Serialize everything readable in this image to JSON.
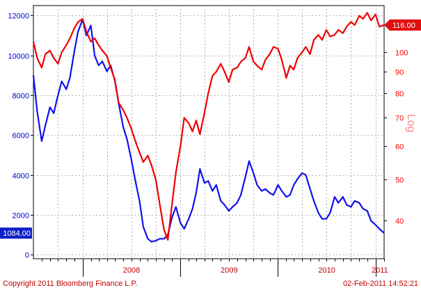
{
  "chart_data": {
    "type": "line",
    "x_tick_labels": [
      "2008",
      "2009",
      "2010",
      "2011"
    ],
    "x_range": [
      "2007-07-01",
      "2011-02-02"
    ],
    "left_axis": {
      "ticks": [
        0,
        2000,
        4000,
        6000,
        8000,
        10000,
        12000
      ],
      "range": [
        -200,
        12500
      ],
      "color": "#0000cc"
    },
    "right_axis": {
      "label": "Log",
      "scale": "log",
      "ticks": [
        40,
        50,
        60,
        70,
        80,
        90,
        100
      ],
      "range": [
        32.5,
        129
      ],
      "color": "#ff0000"
    },
    "grid": true,
    "series": [
      {
        "color": "#1010ee",
        "axis": "left",
        "last_value_label": "1084.00",
        "points": [
          [
            "2007-07-01",
            9000
          ],
          [
            "2007-07-15",
            7200
          ],
          [
            "2007-08-01",
            5700
          ],
          [
            "2007-08-15",
            6500
          ],
          [
            "2007-09-01",
            7400
          ],
          [
            "2007-09-15",
            7100
          ],
          [
            "2007-10-01",
            8000
          ],
          [
            "2007-10-15",
            8700
          ],
          [
            "2007-11-01",
            8300
          ],
          [
            "2007-11-15",
            8900
          ],
          [
            "2007-12-01",
            10200
          ],
          [
            "2007-12-15",
            11200
          ],
          [
            "2008-01-01",
            11800
          ],
          [
            "2008-01-15",
            11000
          ],
          [
            "2008-02-01",
            11500
          ],
          [
            "2008-02-15",
            10000
          ],
          [
            "2008-03-01",
            9500
          ],
          [
            "2008-03-15",
            9700
          ],
          [
            "2008-04-01",
            9200
          ],
          [
            "2008-04-15",
            9500
          ],
          [
            "2008-05-01",
            8700
          ],
          [
            "2008-05-15",
            7600
          ],
          [
            "2008-06-01",
            6400
          ],
          [
            "2008-06-15",
            5800
          ],
          [
            "2008-07-01",
            4800
          ],
          [
            "2008-07-15",
            3800
          ],
          [
            "2008-08-01",
            2700
          ],
          [
            "2008-08-15",
            1400
          ],
          [
            "2008-09-01",
            800
          ],
          [
            "2008-09-15",
            650
          ],
          [
            "2008-10-01",
            700
          ],
          [
            "2008-10-15",
            800
          ],
          [
            "2008-11-01",
            800
          ],
          [
            "2008-11-15",
            1000
          ],
          [
            "2008-12-01",
            1900
          ],
          [
            "2008-12-15",
            2400
          ],
          [
            "2009-01-01",
            1600
          ],
          [
            "2009-01-15",
            1300
          ],
          [
            "2009-02-01",
            1800
          ],
          [
            "2009-02-15",
            2300
          ],
          [
            "2009-03-01",
            3100
          ],
          [
            "2009-03-15",
            4300
          ],
          [
            "2009-04-01",
            3600
          ],
          [
            "2009-04-15",
            3700
          ],
          [
            "2009-05-01",
            3200
          ],
          [
            "2009-05-15",
            3500
          ],
          [
            "2009-06-01",
            2700
          ],
          [
            "2009-06-15",
            2500
          ],
          [
            "2009-07-01",
            2200
          ],
          [
            "2009-07-15",
            2400
          ],
          [
            "2009-08-01",
            2600
          ],
          [
            "2009-08-15",
            3000
          ],
          [
            "2009-09-01",
            3900
          ],
          [
            "2009-09-15",
            4700
          ],
          [
            "2009-10-01",
            4100
          ],
          [
            "2009-10-15",
            3500
          ],
          [
            "2009-11-01",
            3200
          ],
          [
            "2009-11-15",
            3300
          ],
          [
            "2009-12-01",
            3100
          ],
          [
            "2009-12-15",
            3000
          ],
          [
            "2010-01-01",
            3500
          ],
          [
            "2010-01-15",
            3200
          ],
          [
            "2010-02-01",
            2900
          ],
          [
            "2010-02-15",
            3000
          ],
          [
            "2010-03-01",
            3500
          ],
          [
            "2010-03-15",
            3800
          ],
          [
            "2010-04-01",
            4100
          ],
          [
            "2010-04-15",
            4000
          ],
          [
            "2010-05-01",
            3300
          ],
          [
            "2010-05-15",
            2700
          ],
          [
            "2010-06-01",
            2100
          ],
          [
            "2010-06-15",
            1800
          ],
          [
            "2010-07-01",
            1800
          ],
          [
            "2010-07-15",
            2100
          ],
          [
            "2010-08-01",
            2900
          ],
          [
            "2010-08-15",
            2600
          ],
          [
            "2010-09-01",
            2900
          ],
          [
            "2010-09-15",
            2500
          ],
          [
            "2010-10-01",
            2400
          ],
          [
            "2010-10-15",
            2700
          ],
          [
            "2010-11-01",
            2600
          ],
          [
            "2010-11-15",
            2300
          ],
          [
            "2010-12-01",
            2200
          ],
          [
            "2010-12-15",
            1700
          ],
          [
            "2011-01-01",
            1500
          ],
          [
            "2011-01-15",
            1300
          ],
          [
            "2011-02-02",
            1084
          ]
        ]
      },
      {
        "color": "#ee0000",
        "axis": "right",
        "last_value_label": "116.00",
        "points": [
          [
            "2007-07-01",
            106
          ],
          [
            "2007-07-15",
            97
          ],
          [
            "2007-08-01",
            92
          ],
          [
            "2007-08-15",
            99
          ],
          [
            "2007-09-01",
            101
          ],
          [
            "2007-09-15",
            97
          ],
          [
            "2007-10-01",
            94
          ],
          [
            "2007-10-15",
            100
          ],
          [
            "2007-11-01",
            104
          ],
          [
            "2007-11-15",
            108
          ],
          [
            "2007-12-01",
            114
          ],
          [
            "2007-12-15",
            118
          ],
          [
            "2008-01-01",
            120
          ],
          [
            "2008-01-15",
            112
          ],
          [
            "2008-02-01",
            106
          ],
          [
            "2008-02-15",
            108
          ],
          [
            "2008-03-01",
            104
          ],
          [
            "2008-03-15",
            101
          ],
          [
            "2008-04-01",
            98
          ],
          [
            "2008-04-15",
            92
          ],
          [
            "2008-05-01",
            86
          ],
          [
            "2008-05-15",
            76
          ],
          [
            "2008-06-01",
            73
          ],
          [
            "2008-06-15",
            70
          ],
          [
            "2008-07-01",
            66
          ],
          [
            "2008-07-15",
            62
          ],
          [
            "2008-08-01",
            58
          ],
          [
            "2008-08-15",
            55
          ],
          [
            "2008-09-01",
            57
          ],
          [
            "2008-09-15",
            54
          ],
          [
            "2008-10-01",
            50
          ],
          [
            "2008-10-15",
            44
          ],
          [
            "2008-11-01",
            38
          ],
          [
            "2008-11-15",
            36
          ],
          [
            "2008-12-01",
            44
          ],
          [
            "2008-12-15",
            52
          ],
          [
            "2009-01-01",
            60
          ],
          [
            "2009-01-15",
            70
          ],
          [
            "2009-02-01",
            68
          ],
          [
            "2009-02-15",
            65
          ],
          [
            "2009-03-01",
            69
          ],
          [
            "2009-03-15",
            64
          ],
          [
            "2009-04-01",
            72
          ],
          [
            "2009-04-15",
            80
          ],
          [
            "2009-05-01",
            88
          ],
          [
            "2009-05-15",
            90
          ],
          [
            "2009-06-01",
            94
          ],
          [
            "2009-06-15",
            90
          ],
          [
            "2009-07-01",
            85
          ],
          [
            "2009-07-15",
            91
          ],
          [
            "2009-08-01",
            92
          ],
          [
            "2009-08-15",
            95
          ],
          [
            "2009-09-01",
            97
          ],
          [
            "2009-09-15",
            103
          ],
          [
            "2009-10-01",
            95
          ],
          [
            "2009-10-15",
            93
          ],
          [
            "2009-11-01",
            91
          ],
          [
            "2009-11-15",
            96
          ],
          [
            "2009-12-01",
            99
          ],
          [
            "2009-12-15",
            103
          ],
          [
            "2010-01-01",
            102
          ],
          [
            "2010-01-15",
            96
          ],
          [
            "2010-02-01",
            87
          ],
          [
            "2010-02-15",
            93
          ],
          [
            "2010-03-01",
            91
          ],
          [
            "2010-03-15",
            97
          ],
          [
            "2010-04-01",
            100
          ],
          [
            "2010-04-15",
            103
          ],
          [
            "2010-05-01",
            99
          ],
          [
            "2010-05-15",
            107
          ],
          [
            "2010-06-01",
            110
          ],
          [
            "2010-06-15",
            107
          ],
          [
            "2010-07-01",
            113
          ],
          [
            "2010-07-15",
            109
          ],
          [
            "2010-08-01",
            110
          ],
          [
            "2010-08-15",
            113
          ],
          [
            "2010-09-01",
            111
          ],
          [
            "2010-09-15",
            115
          ],
          [
            "2010-10-01",
            118
          ],
          [
            "2010-10-15",
            116
          ],
          [
            "2010-11-01",
            122
          ],
          [
            "2010-11-15",
            120
          ],
          [
            "2010-12-01",
            124
          ],
          [
            "2010-12-15",
            119
          ],
          [
            "2011-01-01",
            123
          ],
          [
            "2011-01-15",
            115
          ],
          [
            "2011-02-02",
            116
          ]
        ]
      }
    ]
  },
  "footer": {
    "copyright": "Copyright 2011 Bloomberg Finance L.P.",
    "timestamp": "02-Feb-2011 14:52:21"
  }
}
